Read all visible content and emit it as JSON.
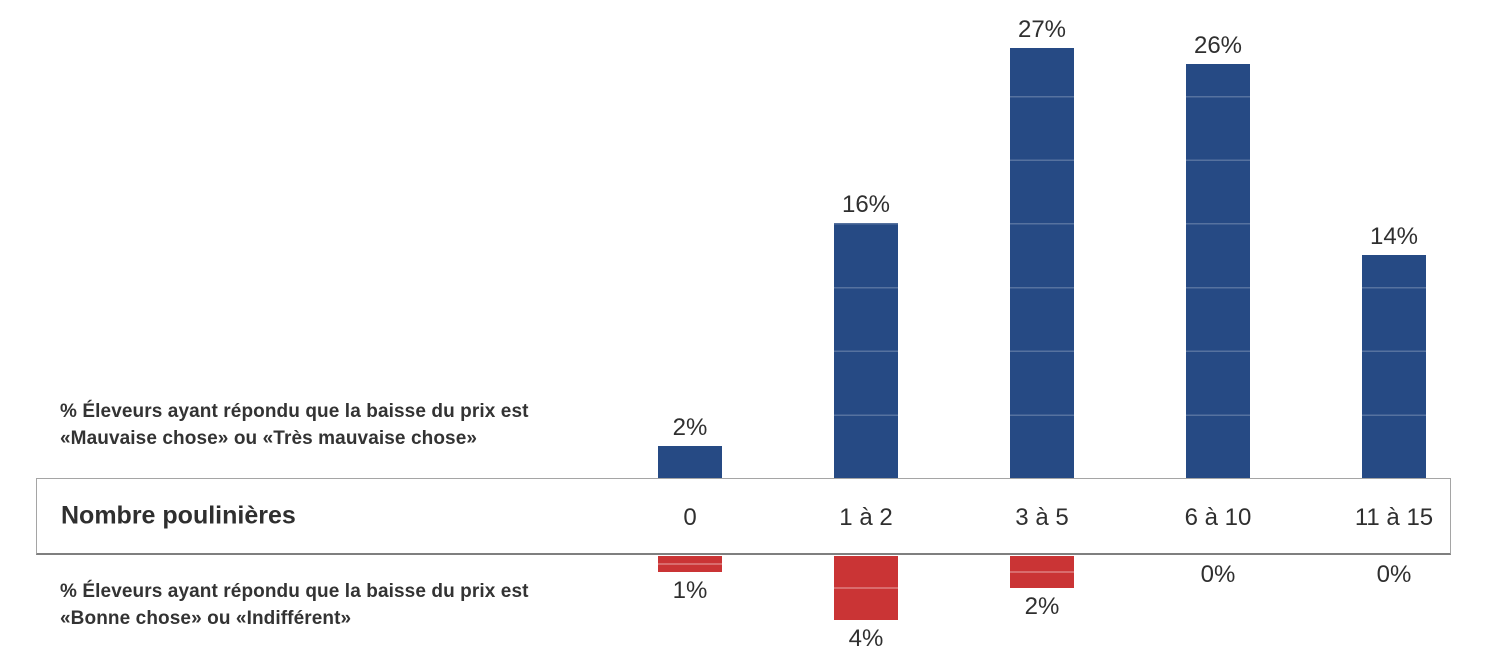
{
  "chart_data": {
    "type": "bar",
    "orientation": "diverging-vertical",
    "categories": [
      "0",
      "1 à 2",
      "3 à 5",
      "6 à 10",
      "11 à 15"
    ],
    "series": [
      {
        "name": "% Éleveurs ayant répondu que la baisse du prix est «Mauvaise chose» ou «Très mauvaise chose»",
        "direction": "up",
        "color": "#264a84",
        "values": [
          2,
          16,
          27,
          26,
          14
        ]
      },
      {
        "name": "% Éleveurs ayant répondu que la baisse du prix est «Bonne chose» ou «Indifférent»",
        "direction": "down",
        "color": "#ca3435",
        "values": [
          1,
          4,
          2,
          0,
          0
        ]
      }
    ],
    "value_labels_up": [
      "2%",
      "16%",
      "27%",
      "26%",
      "14%"
    ],
    "value_labels_down": [
      "1%",
      "4%",
      "2%",
      "0%",
      "0%"
    ],
    "axis_band_label": "Nombre poulinières",
    "value_suffix": "%",
    "gridlines": "subtle horizontal lines every 4% visible inside blue bars; midline inside red bars",
    "legend_position": "left text blocks",
    "background": "#ffffff"
  },
  "labels": {
    "top_series_line1": "% Éleveurs ayant répondu que la baisse du prix est",
    "top_series_line2": "«Mauvaise chose» ou «Très mauvaise chose»",
    "bottom_series_line1": "% Éleveurs ayant répondu que la baisse du prix est",
    "bottom_series_line2": "«Bonne chose» ou «Indifférent»",
    "band_label": "Nombre poulinières"
  },
  "colors": {
    "bar_positive": "#264a84",
    "bar_negative": "#ca3435",
    "text": "#2f2f2f",
    "band_border": "#a5a5a5",
    "baseline": "#7f7f7f"
  }
}
